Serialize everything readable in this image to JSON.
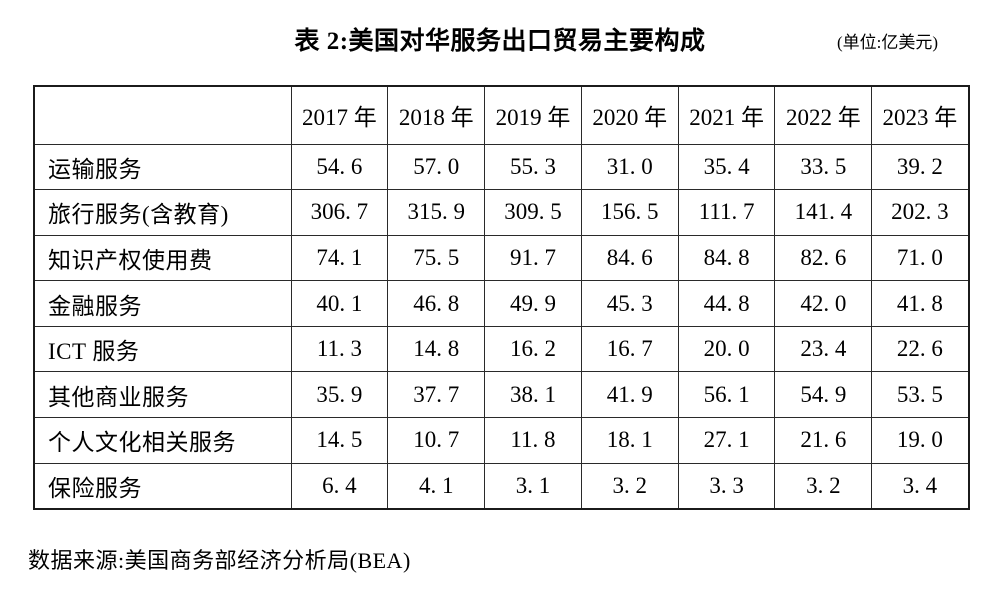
{
  "title": {
    "text": "表 2:美国对华服务出口贸易主要构成",
    "unit": "(单位:亿美元)"
  },
  "table": {
    "columns": [
      "",
      "2017 年",
      "2018 年",
      "2019 年",
      "2020 年",
      "2021 年",
      "2022 年",
      "2023 年"
    ],
    "rows": [
      {
        "label": "运输服务",
        "values": [
          "54. 6",
          "57. 0",
          "55. 3",
          "31. 0",
          "35. 4",
          "33. 5",
          "39. 2"
        ]
      },
      {
        "label": "旅行服务(含教育)",
        "values": [
          "306. 7",
          "315. 9",
          "309. 5",
          "156. 5",
          "111. 7",
          "141. 4",
          "202. 3"
        ]
      },
      {
        "label": "知识产权使用费",
        "values": [
          "74. 1",
          "75. 5",
          "91. 7",
          "84. 6",
          "84. 8",
          "82. 6",
          "71. 0"
        ]
      },
      {
        "label": "金融服务",
        "values": [
          "40. 1",
          "46. 8",
          "49. 9",
          "45. 3",
          "44. 8",
          "42. 0",
          "41. 8"
        ]
      },
      {
        "label": "ICT 服务",
        "values": [
          "11. 3",
          "14. 8",
          "16. 2",
          "16. 7",
          "20. 0",
          "23. 4",
          "22. 6"
        ]
      },
      {
        "label": "其他商业服务",
        "values": [
          "35. 9",
          "37. 7",
          "38. 1",
          "41. 9",
          "56. 1",
          "54. 9",
          "53. 5"
        ]
      },
      {
        "label": "个人文化相关服务",
        "values": [
          "14. 5",
          "10. 7",
          "11. 8",
          "18. 1",
          "27. 1",
          "21. 6",
          "19. 0"
        ]
      },
      {
        "label": "保险服务",
        "values": [
          "6. 4",
          "4. 1",
          "3. 1",
          "3. 2",
          "3. 3",
          "3. 2",
          "3. 4"
        ]
      }
    ]
  },
  "footer": {
    "source": "数据来源:美国商务部经济分析局(BEA)"
  }
}
